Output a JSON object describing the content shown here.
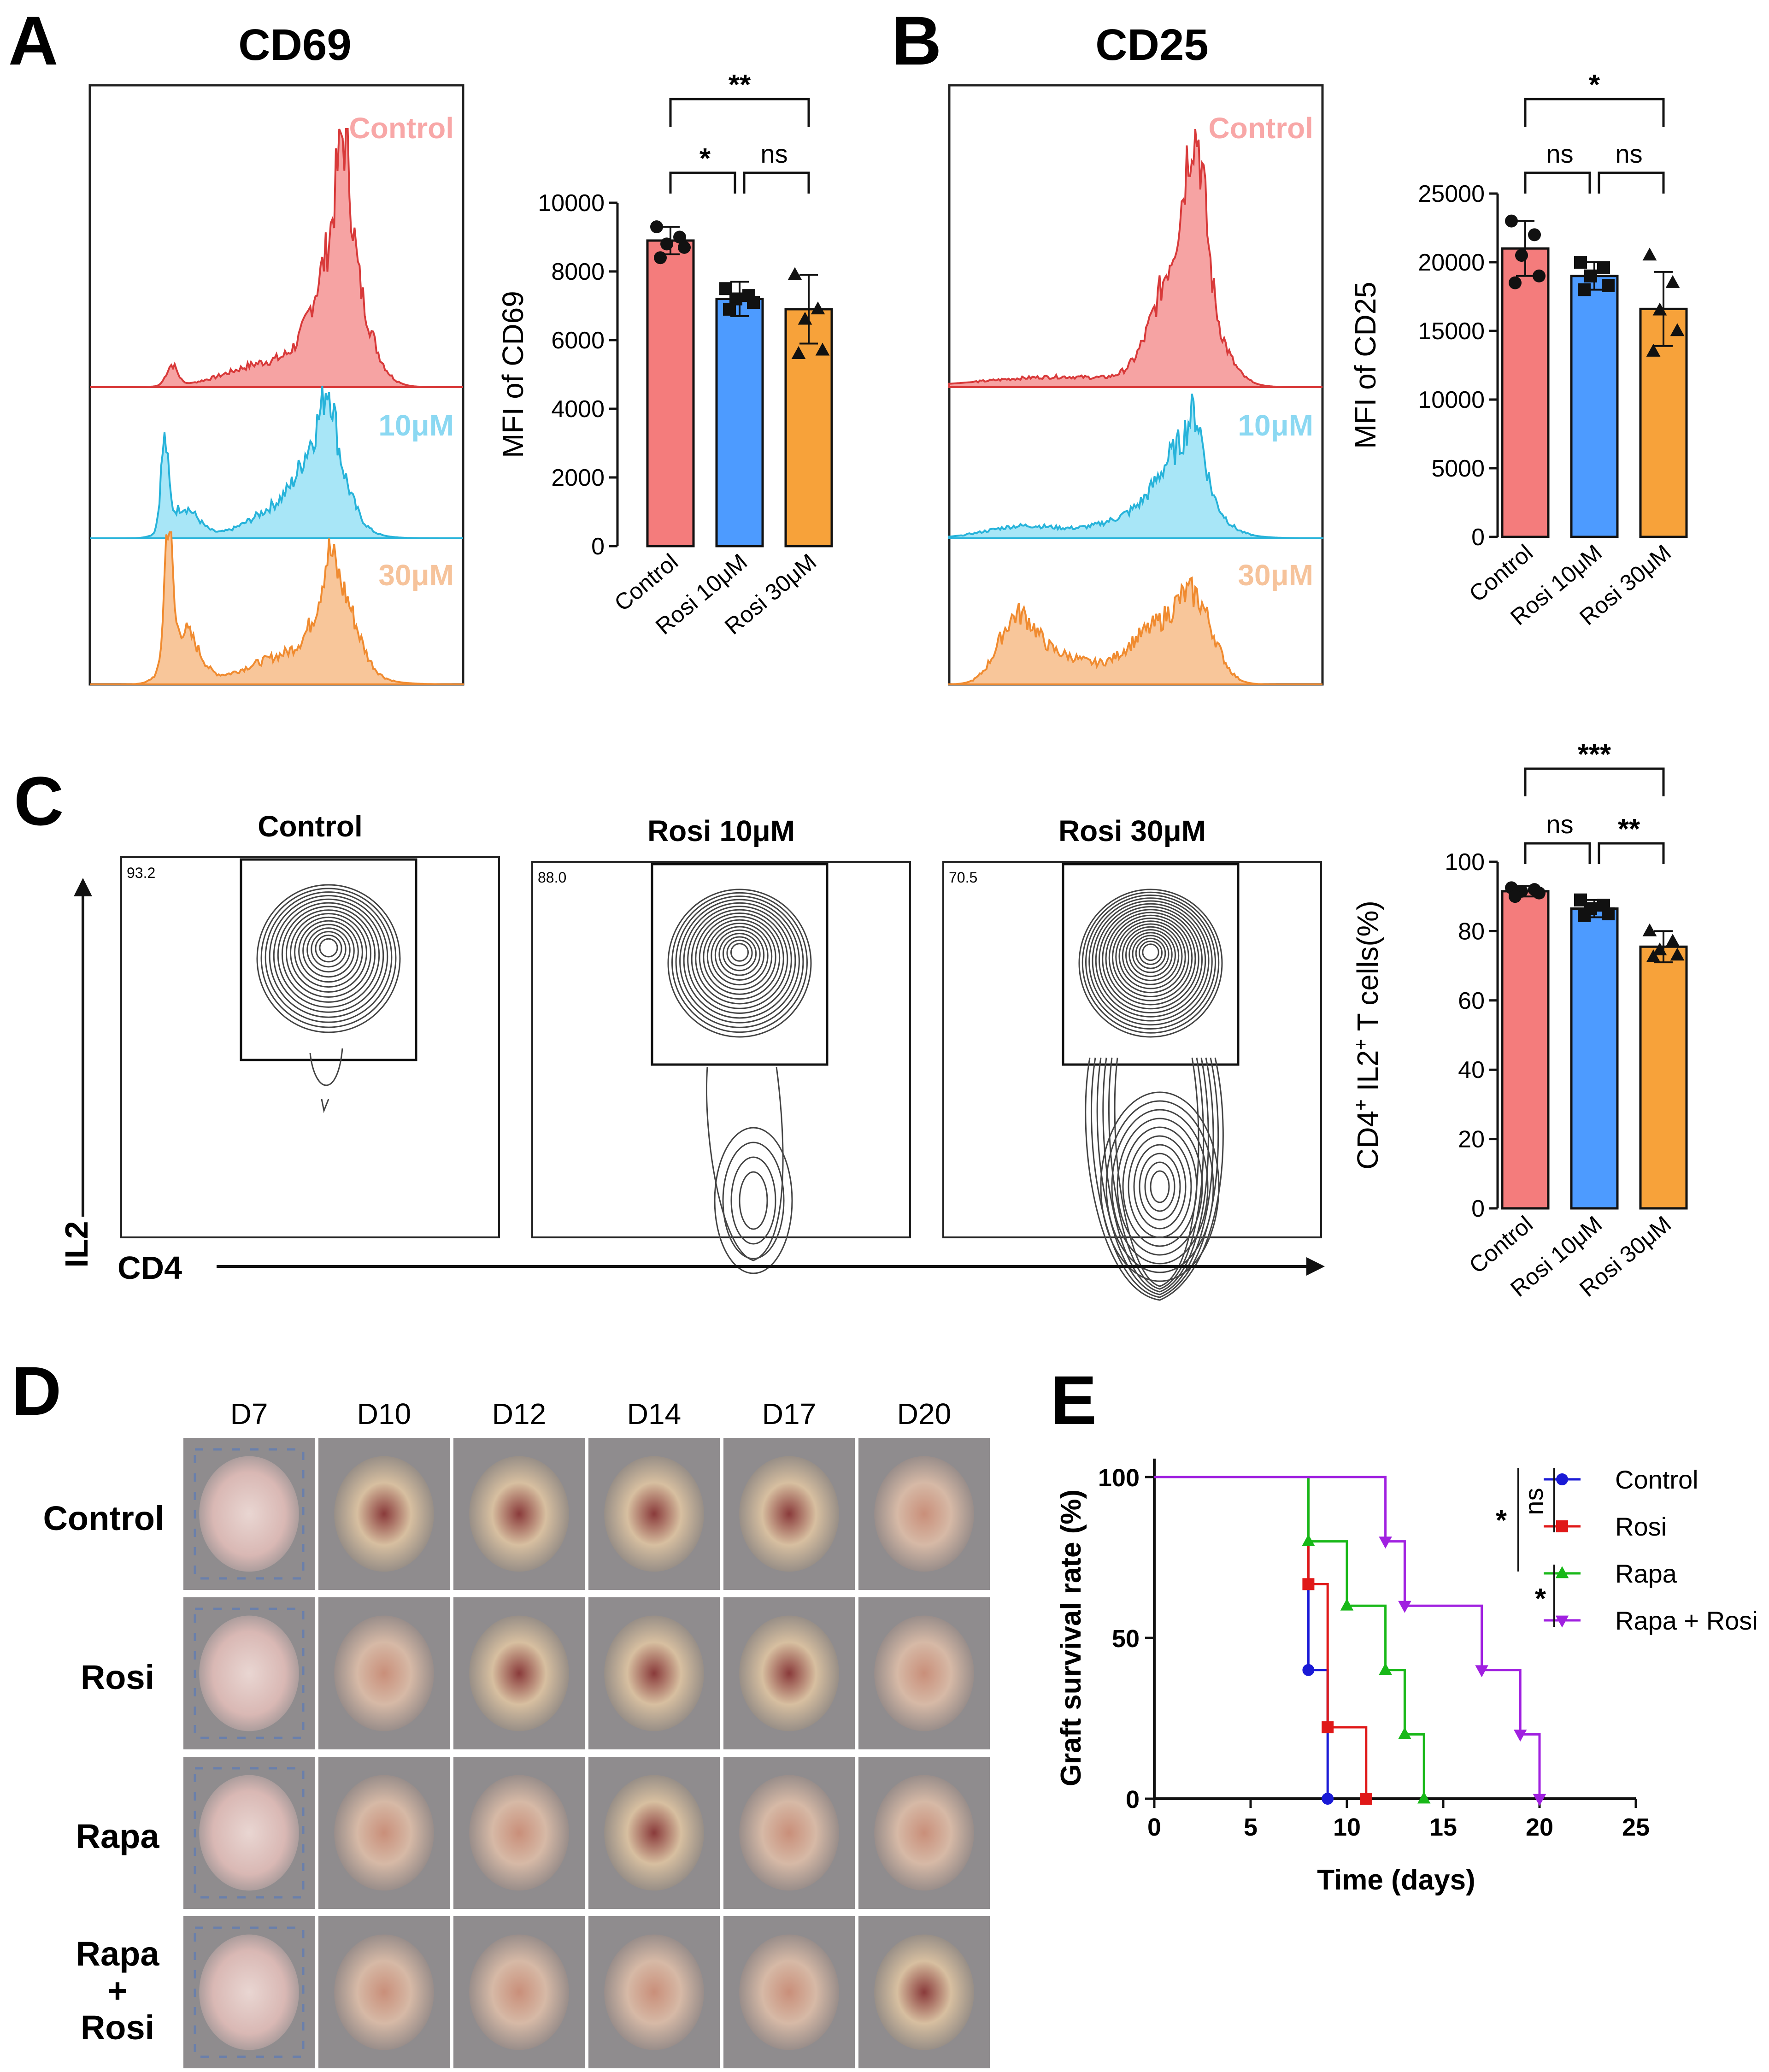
{
  "colors": {
    "control": "#f47c7c",
    "rosi10": "#4d9bff",
    "rosi30": "#f7a23a",
    "hist_control_fill": "#f6a3a3",
    "hist_control_line": "#d83a3a",
    "hist_10_fill": "#a8e6f7",
    "hist_10_line": "#27b3da",
    "hist_30_fill": "#f8c69a",
    "hist_30_line": "#f08b30",
    "label_control": "#f8a7a7",
    "label_10": "#8bd8f2",
    "label_30": "#f6c39b",
    "surv_control": "#1a1ad6",
    "surv_rosi": "#e01818",
    "surv_rapa": "#18b818",
    "surv_rapa_rosi": "#a020e0"
  },
  "panels": {
    "A": {
      "letter": "A",
      "title": "CD69",
      "hist_labels": [
        "Control",
        "10μM",
        "30μM"
      ]
    },
    "B": {
      "letter": "B",
      "title": "CD25",
      "hist_labels": [
        "Control",
        "10μM",
        "30μM"
      ]
    },
    "C": {
      "letter": "C",
      "flow_titles": [
        "Control",
        "Rosi 10μM",
        "Rosi 30μM"
      ],
      "gate_pcts": [
        "93.2",
        "88.0",
        "70.5"
      ],
      "x_axis": "CD4",
      "y_axis": "IL2"
    },
    "D": {
      "letter": "D",
      "days": [
        "D7",
        "D10",
        "D12",
        "D14",
        "D17",
        "D20"
      ],
      "rows": [
        "Control",
        "Rosi",
        "Rapa",
        "Rapa",
        "+",
        "Rosi"
      ]
    },
    "E": {
      "letter": "E",
      "legend": [
        "Control",
        "Rosi",
        "Rapa",
        "Rapa + Rosi"
      ],
      "stats": [
        "ns",
        "*",
        "*"
      ]
    }
  },
  "chart_data": [
    {
      "id": "A-bar",
      "type": "bar",
      "title": "",
      "categories": [
        "Control",
        "Rosi 10μM",
        "Rosi 30μM"
      ],
      "values": [
        8900,
        7200,
        6900
      ],
      "errors": [
        400,
        500,
        1000
      ],
      "points": [
        [
          9300,
          9000,
          8800,
          8700,
          8400
        ],
        [
          7500,
          7300,
          7200,
          7100,
          6900
        ],
        [
          7900,
          6900,
          6600,
          5700,
          5600
        ]
      ],
      "markers": [
        "circle",
        "square",
        "triangle"
      ],
      "ylabel": "MFI of CD69",
      "ylim": [
        0,
        10000
      ],
      "yticks": [
        "0",
        "2000",
        "4000",
        "6000",
        "8000",
        "10000"
      ],
      "brackets": [
        {
          "from": 0,
          "to": 2,
          "label": "**"
        },
        {
          "from": 0,
          "to": 1,
          "label": "*"
        },
        {
          "from": 1,
          "to": 2,
          "label": "ns"
        }
      ]
    },
    {
      "id": "B-bar",
      "type": "bar",
      "title": "",
      "categories": [
        "Control",
        "Rosi 10μM",
        "Rosi 30μM"
      ],
      "values": [
        21000,
        19000,
        16600
      ],
      "errors": [
        2000,
        1000,
        2700
      ],
      "points": [
        [
          23000,
          22000,
          20500,
          19000,
          18500
        ],
        [
          20000,
          19600,
          19000,
          18300,
          18000
        ],
        [
          20500,
          18500,
          16500,
          15000,
          13500
        ]
      ],
      "markers": [
        "circle",
        "square",
        "triangle"
      ],
      "ylabel": "MFI of CD25",
      "ylim": [
        0,
        25000
      ],
      "yticks": [
        "0",
        "5000",
        "10000",
        "15000",
        "20000",
        "25000"
      ],
      "brackets": [
        {
          "from": 0,
          "to": 2,
          "label": "*"
        },
        {
          "from": 0,
          "to": 1,
          "label": "ns"
        },
        {
          "from": 1,
          "to": 2,
          "label": "ns"
        }
      ]
    },
    {
      "id": "C-bar",
      "type": "bar",
      "title": "",
      "categories": [
        "Control",
        "Rosi 10μM",
        "Rosi 30μM"
      ],
      "values": [
        91.5,
        86.5,
        75.5
      ],
      "errors": [
        1.5,
        2.5,
        4.5
      ],
      "points": [
        [
          92.5,
          92,
          91.5,
          91,
          90
        ],
        [
          89,
          87.5,
          86.5,
          85,
          84.5
        ],
        [
          80,
          77,
          74.5,
          73,
          72.5
        ]
      ],
      "markers": [
        "circle",
        "square",
        "triangle"
      ],
      "ylabel_main": "CD4",
      "ylabel_sup1": "+",
      "ylabel_mid": " IL2",
      "ylabel_sup2": "+",
      "ylabel_tail": " T cells(%)",
      "ylim": [
        0,
        100
      ],
      "yticks": [
        "0",
        "20",
        "40",
        "60",
        "80",
        "100"
      ],
      "brackets": [
        {
          "from": 0,
          "to": 2,
          "label": "***"
        },
        {
          "from": 0,
          "to": 1,
          "label": "ns"
        },
        {
          "from": 1,
          "to": 2,
          "label": "**"
        }
      ]
    },
    {
      "id": "E-survival",
      "type": "line",
      "title": "",
      "xlabel": "Time (days)",
      "ylabel": "Graft survival rate (%)",
      "xlim": [
        0,
        25
      ],
      "ylim": [
        0,
        100
      ],
      "xticks": [
        "0",
        "5",
        "10",
        "15",
        "20",
        "25"
      ],
      "yticks": [
        "0",
        "50",
        "100"
      ],
      "series": [
        {
          "name": "Control",
          "marker": "circle",
          "steps": [
            [
              0,
              100
            ],
            [
              8,
              40
            ],
            [
              9,
              0
            ]
          ]
        },
        {
          "name": "Rosi",
          "marker": "square",
          "steps": [
            [
              0,
              100
            ],
            [
              8,
              66.7
            ],
            [
              9,
              22.2
            ],
            [
              11,
              0
            ]
          ]
        },
        {
          "name": "Rapa",
          "marker": "triangle",
          "steps": [
            [
              0,
              100
            ],
            [
              8,
              80
            ],
            [
              10,
              60
            ],
            [
              12,
              40
            ],
            [
              13,
              20
            ],
            [
              14,
              0
            ]
          ]
        },
        {
          "name": "Rapa + Rosi",
          "marker": "triangle-down",
          "steps": [
            [
              0,
              100
            ],
            [
              12,
              80
            ],
            [
              13,
              60
            ],
            [
              17,
              40
            ],
            [
              19,
              20
            ],
            [
              20,
              0
            ]
          ]
        }
      ]
    }
  ]
}
